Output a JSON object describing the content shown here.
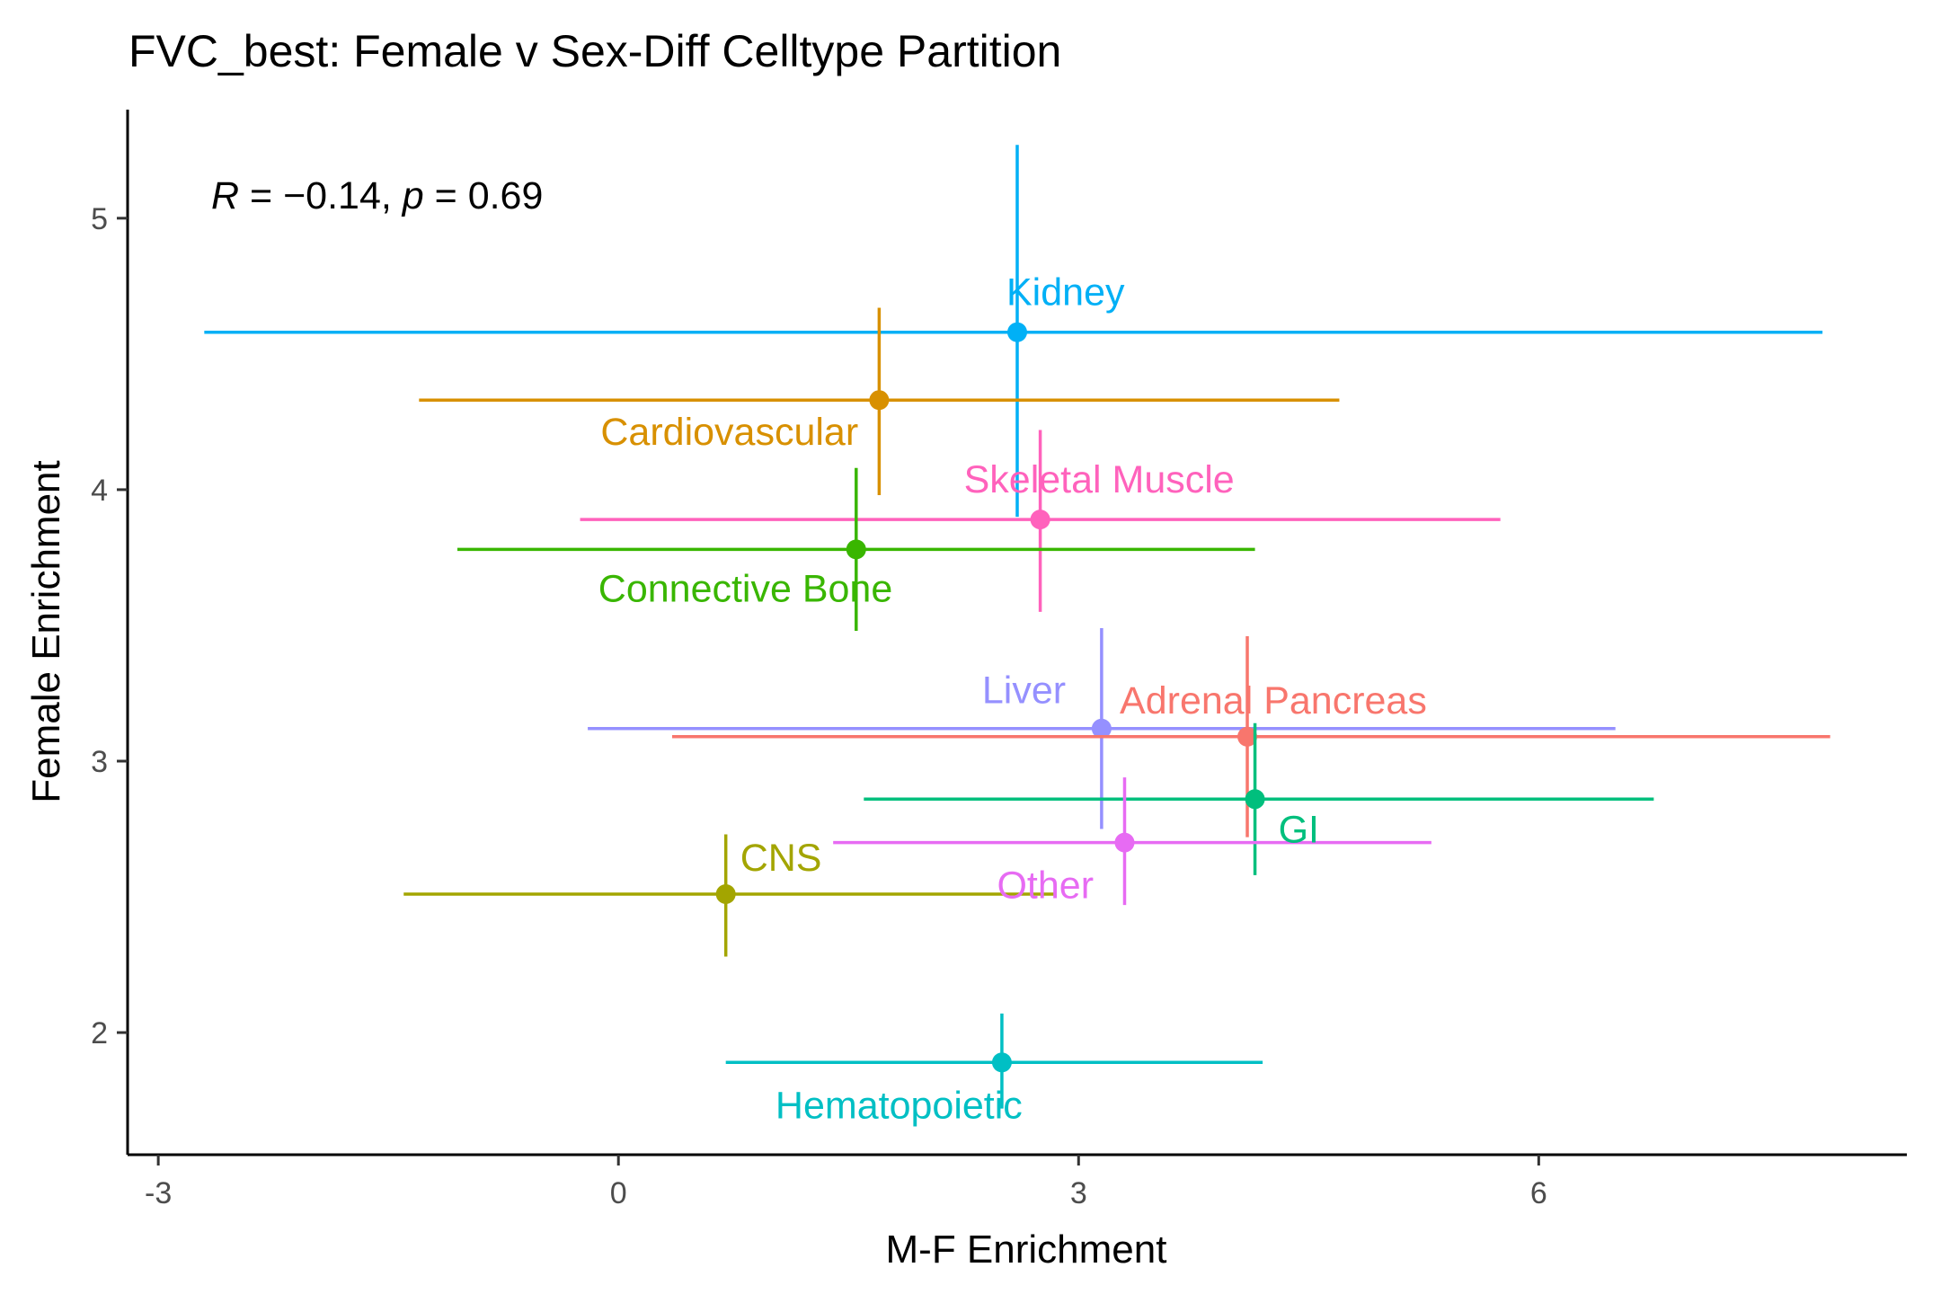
{
  "chart_data": {
    "type": "scatter",
    "title": "FVC_best: Female v Sex-Diff Celltype Partition",
    "xlabel": "M-F Enrichment",
    "ylabel": "Female Enrichment",
    "xlim": [
      -3.2,
      8.4
    ],
    "ylim": [
      1.55,
      5.4
    ],
    "xticks": [
      -3,
      0,
      3,
      6
    ],
    "xtick_labels": [
      "-3",
      "0",
      "3",
      "6"
    ],
    "yticks": [
      2,
      3,
      4,
      5
    ],
    "ytick_labels": [
      "2",
      "3",
      "4",
      "5"
    ],
    "grid": false,
    "annotation": {
      "r_label": "R",
      "r_value": " = −0.14, ",
      "p_label": "p",
      "p_value": " = 0.69"
    },
    "points": [
      {
        "label": "Kidney",
        "color": "#00b0f6",
        "x": 2.6,
        "y": 4.58,
        "xmin": -2.7,
        "xmax": 7.85,
        "ymin": 3.9,
        "ymax": 5.27
      },
      {
        "label": "Cardiovascular",
        "color": "#d89000",
        "x": 1.7,
        "y": 4.33,
        "xmin": -1.3,
        "xmax": 4.7,
        "ymin": 3.98,
        "ymax": 4.67
      },
      {
        "label": "Skeletal Muscle",
        "color": "#ff62bc",
        "x": 2.75,
        "y": 3.89,
        "xmin": -0.25,
        "xmax": 5.75,
        "ymin": 3.55,
        "ymax": 4.22
      },
      {
        "label": "Connective Bone",
        "color": "#39b600",
        "x": 1.55,
        "y": 3.78,
        "xmin": -1.05,
        "xmax": 4.15,
        "ymin": 3.48,
        "ymax": 4.08
      },
      {
        "label": "Liver",
        "color": "#9590ff",
        "x": 3.15,
        "y": 3.12,
        "xmin": -0.2,
        "xmax": 6.5,
        "ymin": 2.75,
        "ymax": 3.49
      },
      {
        "label": "Adrenal Pancreas",
        "color": "#f8766d",
        "x": 4.1,
        "y": 3.09,
        "xmin": 0.35,
        "xmax": 7.9,
        "ymin": 2.72,
        "ymax": 3.46
      },
      {
        "label": "GI",
        "color": "#00bf7d",
        "x": 4.15,
        "y": 2.86,
        "xmin": 1.6,
        "xmax": 6.75,
        "ymin": 2.58,
        "ymax": 3.14
      },
      {
        "label": "Other",
        "color": "#e76bf3",
        "x": 3.3,
        "y": 2.7,
        "xmin": 1.4,
        "xmax": 5.3,
        "ymin": 2.47,
        "ymax": 2.94
      },
      {
        "label": "CNS",
        "color": "#a3a500",
        "x": 0.7,
        "y": 2.51,
        "xmin": -1.4,
        "xmax": 2.85,
        "ymin": 2.28,
        "ymax": 2.73
      },
      {
        "label": "Hematopoietic",
        "color": "#00bfc4",
        "x": 2.5,
        "y": 1.89,
        "xmin": 0.7,
        "xmax": 4.2,
        "ymin": 1.72,
        "ymax": 2.07
      }
    ]
  }
}
